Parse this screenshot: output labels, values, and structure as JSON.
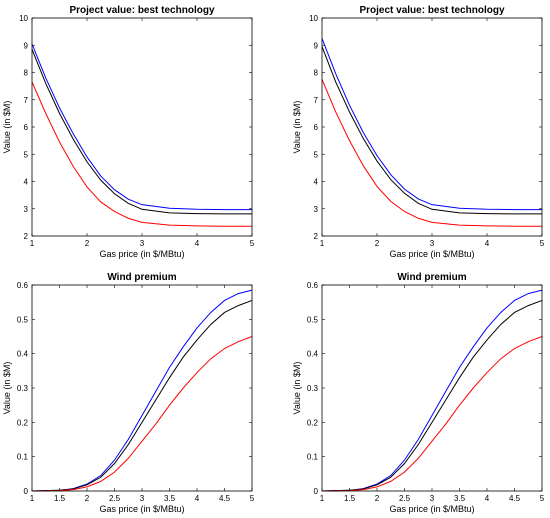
{
  "chart_data": [
    {
      "type": "line",
      "title": "Project value: best technology",
      "xlabel": "Gas price (in $/MBtu)",
      "ylabel": "Value (in $M)",
      "xlim": [
        1,
        5
      ],
      "ylim": [
        2,
        10
      ],
      "xticks": [
        1,
        2,
        3,
        4,
        5
      ],
      "yticks": [
        2,
        3,
        4,
        5,
        6,
        7,
        8,
        9,
        10
      ],
      "grid": false,
      "x": [
        1,
        1.25,
        1.5,
        1.75,
        2,
        2.25,
        2.5,
        2.75,
        3,
        3.5,
        4,
        4.5,
        5
      ],
      "series": [
        {
          "color": "#0000ff",
          "values": [
            9.05,
            7.8,
            6.7,
            5.75,
            4.9,
            4.2,
            3.7,
            3.35,
            3.15,
            3.02,
            2.98,
            2.97,
            2.97
          ]
        },
        {
          "color": "#000000",
          "values": [
            8.85,
            7.6,
            6.5,
            5.55,
            4.72,
            4.05,
            3.55,
            3.2,
            2.98,
            2.85,
            2.82,
            2.81,
            2.81
          ]
        },
        {
          "color": "#ff0000",
          "values": [
            7.65,
            6.5,
            5.45,
            4.55,
            3.8,
            3.25,
            2.9,
            2.65,
            2.5,
            2.4,
            2.37,
            2.36,
            2.36
          ]
        }
      ]
    },
    {
      "type": "line",
      "title": "Project value: best technology",
      "xlabel": "Gas price (in $/MBtu)",
      "ylabel": "Value (in $M)",
      "xlim": [
        1,
        5
      ],
      "ylim": [
        2,
        10
      ],
      "xticks": [
        1,
        2,
        3,
        4,
        5
      ],
      "yticks": [
        2,
        3,
        4,
        5,
        6,
        7,
        8,
        9,
        10
      ],
      "grid": false,
      "x": [
        1,
        1.25,
        1.5,
        1.75,
        2,
        2.25,
        2.5,
        2.75,
        3,
        3.5,
        4,
        4.5,
        5
      ],
      "series": [
        {
          "color": "#0000ff",
          "values": [
            9.25,
            7.95,
            6.8,
            5.8,
            4.95,
            4.25,
            3.72,
            3.36,
            3.15,
            3.02,
            2.98,
            2.97,
            2.97
          ]
        },
        {
          "color": "#000000",
          "values": [
            8.95,
            7.65,
            6.55,
            5.58,
            4.75,
            4.07,
            3.57,
            3.2,
            2.98,
            2.85,
            2.82,
            2.81,
            2.81
          ]
        },
        {
          "color": "#ff0000",
          "values": [
            7.75,
            6.55,
            5.5,
            4.58,
            3.82,
            3.27,
            2.9,
            2.65,
            2.5,
            2.4,
            2.37,
            2.36,
            2.36
          ]
        }
      ]
    },
    {
      "type": "line",
      "title": "Wind premium",
      "xlabel": "Gas price (in $/MBtu)",
      "ylabel": "Value (in $M)",
      "xlim": [
        1,
        5
      ],
      "ylim": [
        0,
        0.6
      ],
      "xticks": [
        1,
        1.5,
        2,
        2.5,
        3,
        3.5,
        4,
        4.5,
        5
      ],
      "yticks": [
        0,
        0.1,
        0.2,
        0.3,
        0.4,
        0.5,
        0.6
      ],
      "grid": false,
      "x": [
        1,
        1.5,
        1.75,
        2,
        2.25,
        2.5,
        2.75,
        3,
        3.25,
        3.5,
        3.75,
        4,
        4.25,
        4.5,
        4.75,
        5
      ],
      "series": [
        {
          "color": "#0000ff",
          "values": [
            0,
            0.002,
            0.007,
            0.02,
            0.045,
            0.09,
            0.15,
            0.22,
            0.29,
            0.36,
            0.42,
            0.475,
            0.52,
            0.555,
            0.575,
            0.585
          ]
        },
        {
          "color": "#000000",
          "values": [
            0,
            0.002,
            0.006,
            0.018,
            0.04,
            0.08,
            0.135,
            0.2,
            0.265,
            0.33,
            0.39,
            0.44,
            0.485,
            0.52,
            0.54,
            0.555
          ]
        },
        {
          "color": "#ff0000",
          "values": [
            0,
            0.001,
            0.004,
            0.012,
            0.028,
            0.055,
            0.095,
            0.145,
            0.195,
            0.25,
            0.3,
            0.345,
            0.385,
            0.415,
            0.435,
            0.45
          ]
        }
      ]
    },
    {
      "type": "line",
      "title": "Wind premium",
      "xlabel": "Gas price (in $/MBtu)",
      "ylabel": "Value (in $M)",
      "xlim": [
        1,
        5
      ],
      "ylim": [
        0,
        0.6
      ],
      "xticks": [
        1,
        1.5,
        2,
        2.5,
        3,
        3.5,
        4,
        4.5,
        5
      ],
      "yticks": [
        0,
        0.1,
        0.2,
        0.3,
        0.4,
        0.5,
        0.6
      ],
      "grid": false,
      "x": [
        1,
        1.5,
        1.75,
        2,
        2.25,
        2.5,
        2.75,
        3,
        3.25,
        3.5,
        3.75,
        4,
        4.25,
        4.5,
        4.75,
        5
      ],
      "series": [
        {
          "color": "#0000ff",
          "values": [
            0,
            0.002,
            0.007,
            0.02,
            0.045,
            0.09,
            0.15,
            0.22,
            0.29,
            0.36,
            0.42,
            0.475,
            0.52,
            0.555,
            0.575,
            0.585
          ]
        },
        {
          "color": "#000000",
          "values": [
            0,
            0.002,
            0.006,
            0.018,
            0.04,
            0.08,
            0.135,
            0.2,
            0.265,
            0.33,
            0.39,
            0.44,
            0.485,
            0.52,
            0.54,
            0.555
          ]
        },
        {
          "color": "#ff0000",
          "values": [
            0,
            0.001,
            0.004,
            0.012,
            0.028,
            0.055,
            0.095,
            0.145,
            0.195,
            0.25,
            0.3,
            0.345,
            0.385,
            0.415,
            0.435,
            0.45
          ]
        }
      ]
    }
  ]
}
